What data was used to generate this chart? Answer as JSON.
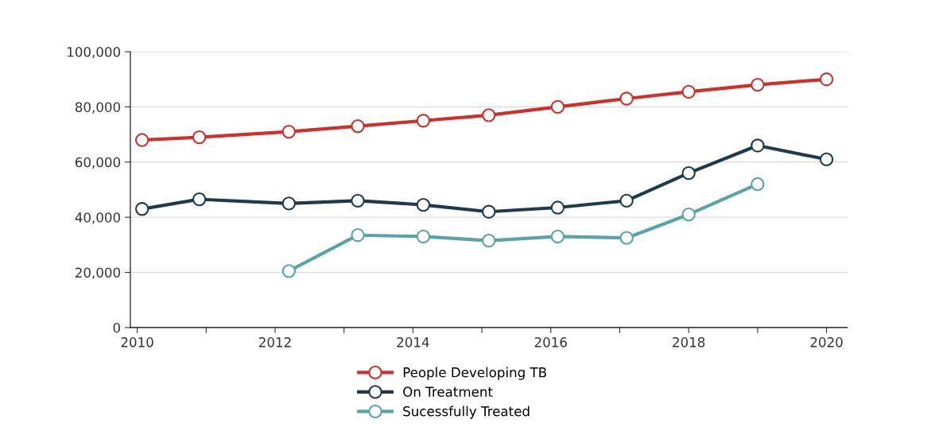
{
  "chart_data": {
    "type": "line",
    "x": [
      2010.07,
      2010.9,
      2012.2,
      2013.2,
      2014.15,
      2015.1,
      2016.1,
      2017.1,
      2018.0,
      2019.0,
      2020.0
    ],
    "series": [
      {
        "name": "People Developing TB",
        "color": "#d0302c",
        "values": [
          68000,
          69000,
          71000,
          73000,
          75000,
          77000,
          80000,
          83000,
          85500,
          88000,
          90000
        ]
      },
      {
        "name": "On Treatment",
        "color": "#1f3a4d",
        "values": [
          43000,
          46500,
          45000,
          46000,
          44500,
          42000,
          43500,
          46000,
          56000,
          66000,
          61000
        ]
      },
      {
        "name": "Sucessfully Treated",
        "color": "#5aa3a8",
        "values": [
          null,
          null,
          20500,
          33500,
          33000,
          31500,
          33000,
          32500,
          41000,
          52000,
          null
        ]
      }
    ],
    "xlim": [
      2009.9,
      2020.3
    ],
    "xticks": [
      2010,
      {
        "value": 2011,
        "label": null
      },
      2012,
      {
        "value": 2013,
        "label": null
      },
      2014,
      {
        "value": 2015,
        "label": null
      },
      2016,
      {
        "value": 2017,
        "label": null
      },
      2018,
      {
        "value": 2019,
        "label": null
      },
      2020
    ],
    "ylim": [
      0,
      100000
    ],
    "yticks": [
      {
        "value": 0,
        "label": "0"
      },
      {
        "value": 20000,
        "label": "20,000"
      },
      {
        "value": 40000,
        "label": "40,000"
      },
      {
        "value": 60000,
        "label": "60,000"
      },
      {
        "value": 80000,
        "label": "80,000"
      },
      {
        "value": 100000,
        "label": "100,000"
      }
    ],
    "grid": "y",
    "legend": "bottom",
    "marker": "circle",
    "line_style": "solid"
  }
}
